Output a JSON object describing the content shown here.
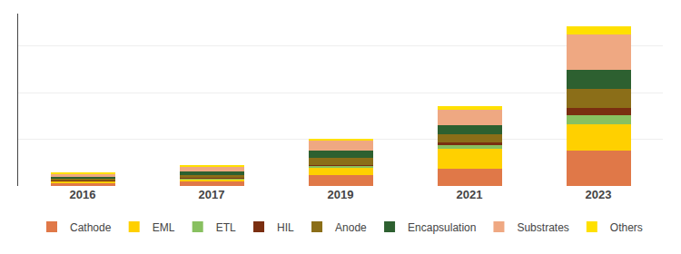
{
  "chart_data": {
    "type": "bar",
    "stacked": true,
    "categories": [
      "2016",
      "2017",
      "2019",
      "2021",
      "2023"
    ],
    "series": [
      {
        "name": "Cathode",
        "color": "#E07848",
        "values": [
          0.03,
          0.045,
          0.12,
          0.18,
          0.38
        ]
      },
      {
        "name": "EML",
        "color": "#FFD000",
        "values": [
          0.02,
          0.025,
          0.08,
          0.22,
          0.28
        ]
      },
      {
        "name": "ETL",
        "color": "#88C060",
        "values": [
          0.005,
          0.01,
          0.015,
          0.04,
          0.1
        ]
      },
      {
        "name": "HIL",
        "color": "#7A2E10",
        "values": [
          0.005,
          0.008,
          0.012,
          0.025,
          0.08
        ]
      },
      {
        "name": "Anode",
        "color": "#8B6E18",
        "values": [
          0.015,
          0.03,
          0.07,
          0.085,
          0.2
        ]
      },
      {
        "name": "Encapsulation",
        "color": "#2D6030",
        "values": [
          0.02,
          0.04,
          0.085,
          0.105,
          0.2
        ]
      },
      {
        "name": "Substrates",
        "color": "#EFA882",
        "values": [
          0.04,
          0.048,
          0.1,
          0.16,
          0.38
        ]
      },
      {
        "name": "Others",
        "color": "#FFE000",
        "values": [
          0.015,
          0.014,
          0.028,
          0.045,
          0.09
        ]
      }
    ],
    "ylim": [
      0,
      1.8468
    ],
    "yticks": [
      0,
      0.5,
      1,
      1.5
    ],
    "grid": true,
    "tick_labels": "x",
    "legend": "bottom"
  }
}
